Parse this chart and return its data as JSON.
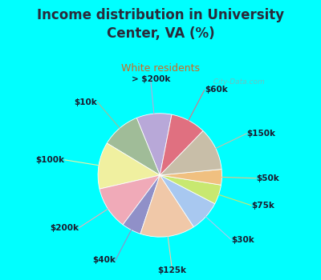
{
  "title": "Income distribution in University\nCenter, VA (%)",
  "subtitle": "White residents",
  "background_color": "#00FFFF",
  "chart_bg_color": "#d8ede6",
  "watermark": "  City-Data.com",
  "labels": [
    "> $200k",
    "$10k",
    "$100k",
    "$200k",
    "$40k",
    "$125k",
    "$30k",
    "$75k",
    "$50k",
    "$150k",
    "$60k"
  ],
  "sizes": [
    9,
    10,
    12,
    11,
    5,
    14,
    8,
    5,
    4,
    11,
    9
  ],
  "colors": [
    "#b8a8d8",
    "#a0bc98",
    "#f0f0a0",
    "#f0aab8",
    "#9090c8",
    "#f0c8a8",
    "#a8c8f0",
    "#c8e870",
    "#f0c080",
    "#c8bea8",
    "#e07080"
  ],
  "label_fontsize": 7.5,
  "title_fontsize": 12,
  "subtitle_fontsize": 9,
  "title_color": "#2a2a3a",
  "subtitle_color": "#d06820",
  "startangle": 79
}
